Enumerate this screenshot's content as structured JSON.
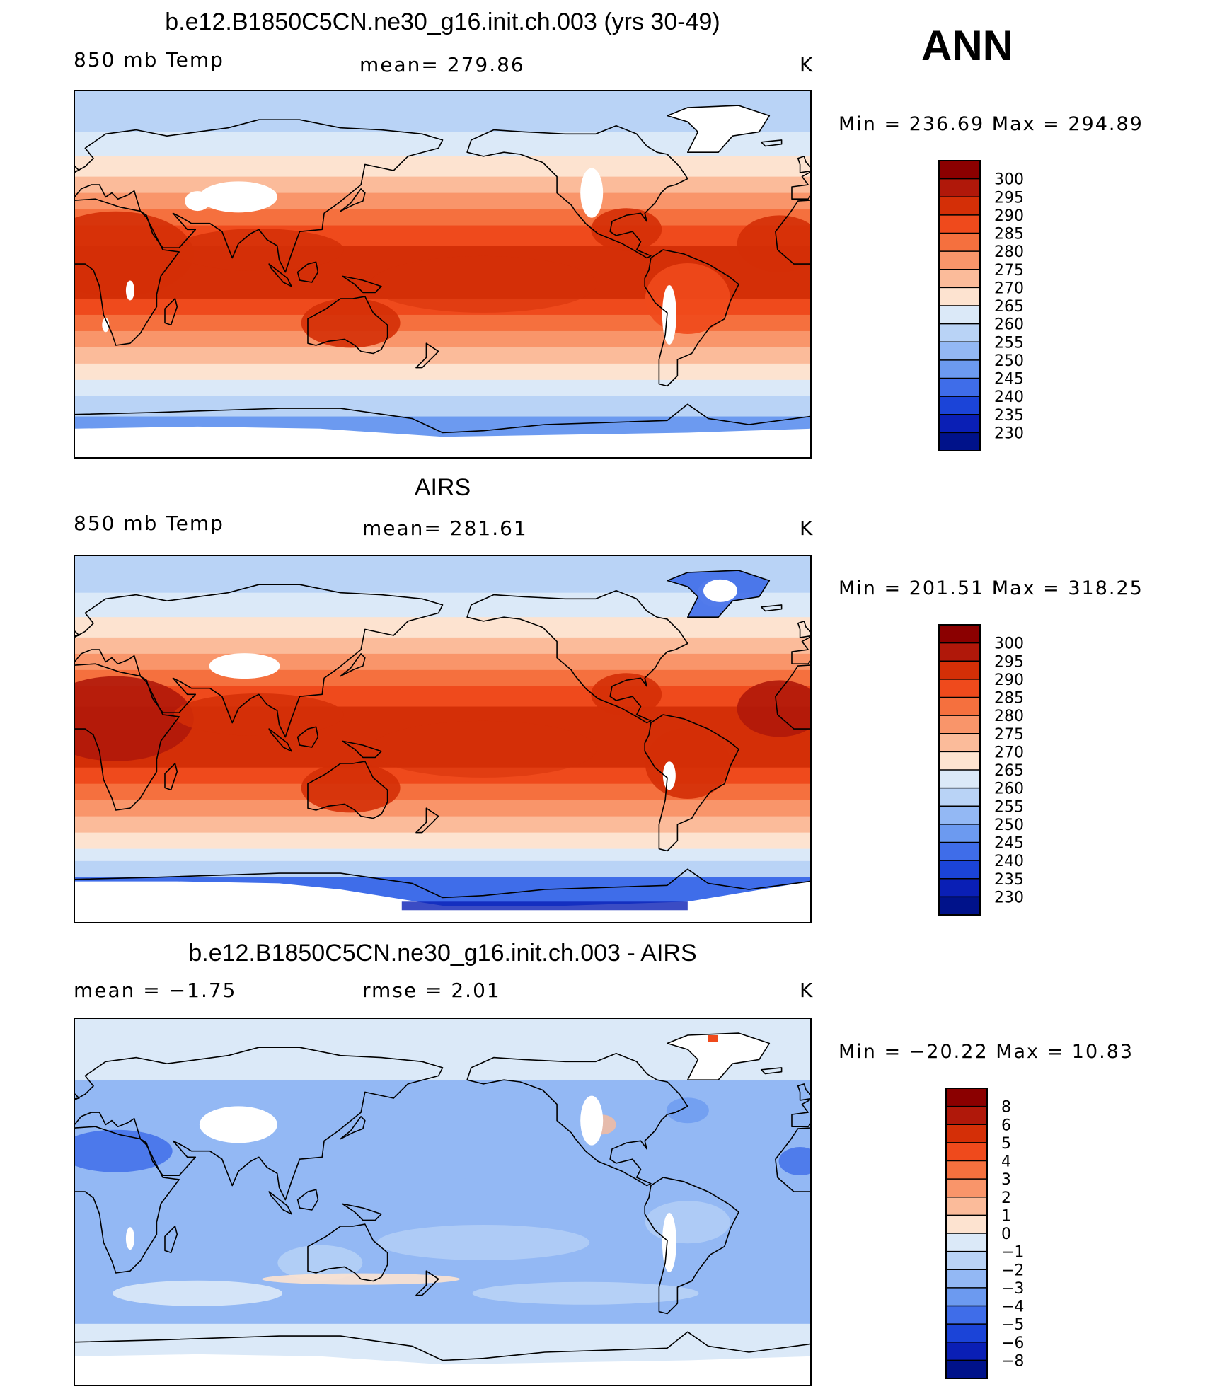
{
  "season": "ANN",
  "panels": [
    {
      "title": "b.e12.B1850C5CN.ne30_g16.init.ch.003 (yrs 30-49)",
      "left_label": "850 mb Temp",
      "mid_label": "mean= 279.86",
      "units": "K",
      "minmax": "Min = 236.69 Max = 294.89",
      "field": "model"
    },
    {
      "title": "AIRS",
      "left_label": "850 mb Temp",
      "mid_label": "mean= 281.61",
      "units": "K",
      "minmax": "Min = 201.51 Max = 318.25",
      "field": "obs"
    },
    {
      "title": "b.e12.B1850C5CN.ne30_g16.init.ch.003 - AIRS",
      "left_label": "mean =   −1.75",
      "mid_label": "rmse =    2.01",
      "units": "K",
      "minmax": "Min = −20.22 Max =   10.83",
      "field": "diff"
    }
  ],
  "colorbars": {
    "temp": {
      "levels": [
        "300",
        "295",
        "290",
        "285",
        "280",
        "275",
        "270",
        "265",
        "260",
        "255",
        "250",
        "245",
        "240",
        "235",
        "230"
      ],
      "colors": [
        "#8b0000",
        "#b0180a",
        "#d42f07",
        "#ef4a1c",
        "#f5703e",
        "#f9956a",
        "#fbbb9a",
        "#fde3d0",
        "#dbe9f8",
        "#b9d3f6",
        "#93b8f4",
        "#6c9af0",
        "#3f6de9",
        "#1b44d8",
        "#0a1fb5",
        "#00128a"
      ]
    },
    "diff": {
      "levels": [
        "8",
        "6",
        "5",
        "4",
        "3",
        "2",
        "1",
        "0",
        "−1",
        "−2",
        "−3",
        "−4",
        "−5",
        "−6",
        "−8"
      ],
      "colors": [
        "#8b0000",
        "#b0180a",
        "#d42f07",
        "#ef4a1c",
        "#f5703e",
        "#f9956a",
        "#fbbb9a",
        "#fde3d0",
        "#dbe9f8",
        "#b9d3f6",
        "#93b8f4",
        "#6c9af0",
        "#3f6de9",
        "#1b44d8",
        "#0a1fb5",
        "#00128a"
      ]
    }
  },
  "chart_data": [
    {
      "type": "heatmap",
      "title": "b.e12.B1850C5CN.ne30_g16.init.ch.003 (yrs 30-49)",
      "variable": "850 mb Temp",
      "units": "K",
      "mean": 279.86,
      "min": 236.69,
      "max": 294.89,
      "contour_levels": [
        230,
        235,
        240,
        245,
        250,
        255,
        260,
        265,
        270,
        275,
        280,
        285,
        290,
        295,
        300
      ],
      "lon_range": [
        0,
        360
      ],
      "lat_range": [
        -90,
        90
      ]
    },
    {
      "type": "heatmap",
      "title": "AIRS",
      "variable": "850 mb Temp",
      "units": "K",
      "mean": 281.61,
      "min": 201.51,
      "max": 318.25,
      "contour_levels": [
        230,
        235,
        240,
        245,
        250,
        255,
        260,
        265,
        270,
        275,
        280,
        285,
        290,
        295,
        300
      ],
      "lon_range": [
        0,
        360
      ],
      "lat_range": [
        -90,
        90
      ]
    },
    {
      "type": "heatmap",
      "title": "b.e12.B1850C5CN.ne30_g16.init.ch.003 - AIRS",
      "units": "K",
      "mean": -1.75,
      "rmse": 2.01,
      "min": -20.22,
      "max": 10.83,
      "contour_levels": [
        -8,
        -6,
        -5,
        -4,
        -3,
        -2,
        -1,
        0,
        1,
        2,
        3,
        4,
        5,
        6,
        8
      ],
      "lon_range": [
        0,
        360
      ],
      "lat_range": [
        -90,
        90
      ]
    }
  ]
}
